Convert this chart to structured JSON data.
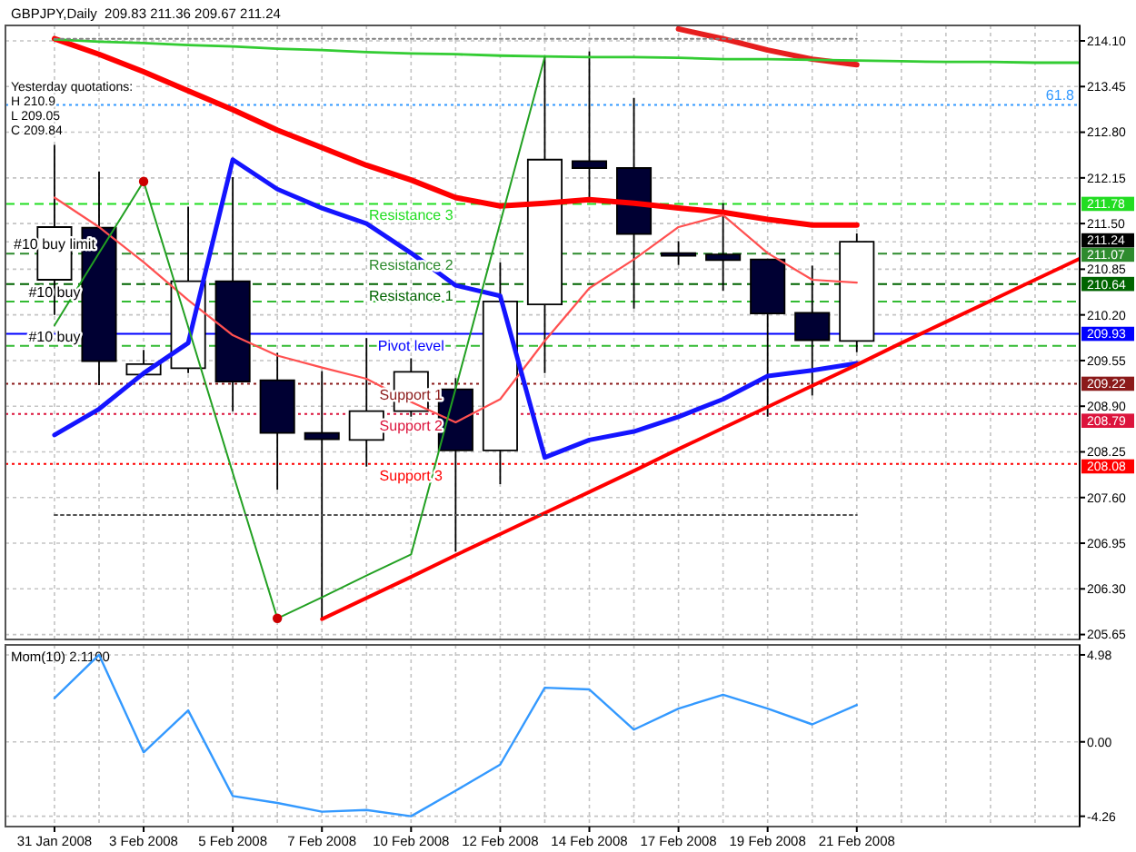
{
  "chart_data": [
    {
      "type": "candlestick",
      "title": "GBPJPY,Daily  209.83 211.36 209.67 211.24",
      "categories": [
        "31 Jan 2008",
        null,
        "3 Feb 2008",
        null,
        "5 Feb 2008",
        null,
        "7 Feb 2008",
        null,
        "10 Feb 2008",
        null,
        "12 Feb 2008",
        null,
        "14 Feb 2008",
        null,
        "17 Feb 2008",
        null,
        "19 Feb 2008",
        null,
        "21 Feb 2008",
        null,
        null,
        null,
        null,
        null
      ],
      "ohlc": [
        [
          210.7,
          212.62,
          210.2,
          211.45
        ],
        [
          211.44,
          212.24,
          209.2,
          209.54
        ],
        [
          209.35,
          209.7,
          209.33,
          209.5
        ],
        [
          209.44,
          211.74,
          209.37,
          210.68
        ],
        [
          210.68,
          212.16,
          208.83,
          209.25
        ],
        [
          209.27,
          209.66,
          207.71,
          208.52
        ],
        [
          208.52,
          209.4,
          205.87,
          208.43
        ],
        [
          208.42,
          209.87,
          208.04,
          208.83
        ],
        [
          208.83,
          209.58,
          208.75,
          209.39
        ],
        [
          209.14,
          209.3,
          206.83,
          208.27
        ],
        [
          208.27,
          210.95,
          207.79,
          210.39
        ],
        [
          210.35,
          213.87,
          209.37,
          212.41
        ],
        [
          212.39,
          213.95,
          211.87,
          212.29
        ],
        [
          212.29,
          213.29,
          210.29,
          211.35
        ],
        [
          211.08,
          211.25,
          210.91,
          211.04
        ],
        [
          211.06,
          211.79,
          210.54,
          210.98
        ],
        [
          210.99,
          211.0,
          208.75,
          210.22
        ],
        [
          210.23,
          210.9,
          209.05,
          209.84
        ],
        [
          209.83,
          211.36,
          209.67,
          211.24
        ],
        null,
        null,
        null,
        null,
        null
      ],
      "colors": [
        "#ffffff",
        "#000033",
        "#ffffff",
        "#ffffff",
        "#000033",
        "#000033",
        "#000033",
        "#ffffff",
        "#ffffff",
        "#000033",
        "#ffffff",
        "#ffffff",
        "#000033",
        "#000033",
        "#000033",
        "#000033",
        "#000033",
        "#000033",
        "#ffffff",
        null,
        null,
        null,
        null,
        null
      ],
      "series": [
        {
          "type": "line",
          "color": "#ff0000",
          "values": [
            214.13,
            213.91,
            213.66,
            213.39,
            213.12,
            212.83,
            212.58,
            212.33,
            212.12,
            211.87,
            211.75,
            211.79,
            211.84,
            211.79,
            211.72,
            211.66,
            211.56,
            211.48,
            211.48,
            null,
            null,
            null,
            null,
            null
          ]
        },
        {
          "type": "line",
          "color": "#e61e1e",
          "values": [
            null,
            null,
            null,
            null,
            null,
            null,
            null,
            null,
            null,
            null,
            null,
            null,
            null,
            null,
            214.27,
            214.13,
            213.97,
            213.84,
            213.76,
            null,
            null,
            null,
            null,
            null
          ]
        },
        {
          "type": "line",
          "color": "#ff5050",
          "values": [
            211.87,
            211.45,
            210.95,
            210.41,
            209.91,
            209.62,
            209.45,
            209.29,
            208.96,
            208.67,
            209.0,
            209.83,
            210.58,
            210.99,
            211.45,
            211.62,
            211.08,
            210.7,
            210.66,
            null,
            null,
            null,
            null,
            null
          ]
        },
        {
          "type": "line",
          "color": "#1414ff",
          "values": [
            208.49,
            208.86,
            209.37,
            209.8,
            212.41,
            211.99,
            211.72,
            211.5,
            211.08,
            210.62,
            210.47,
            208.17,
            208.42,
            208.54,
            208.75,
            209.0,
            209.33,
            209.41,
            209.51,
            null,
            null,
            null,
            null,
            null
          ]
        },
        {
          "type": "line",
          "color": "#33cc33",
          "values": [
            214.12,
            214.09,
            214.07,
            214.04,
            214.02,
            213.99,
            213.97,
            213.94,
            213.92,
            213.91,
            213.89,
            213.88,
            213.87,
            213.87,
            213.86,
            213.84,
            213.84,
            213.83,
            213.82,
            213.81,
            213.8,
            213.8,
            213.79,
            213.79
          ]
        },
        {
          "type": "line",
          "color": "#22a022",
          "values": [
            210.05,
            211.08,
            212.1,
            210.03,
            207.95,
            205.88,
            206.18,
            206.49,
            206.79,
            209.15,
            211.51,
            213.87,
            null,
            null,
            null,
            null,
            null,
            null,
            null,
            null,
            null,
            null,
            null,
            null
          ]
        },
        {
          "type": "line",
          "color": "#ff0000",
          "values": [
            null,
            null,
            null,
            null,
            null,
            null,
            205.87,
            206.17,
            206.47,
            206.78,
            207.08,
            207.38,
            207.68,
            207.98,
            208.29,
            208.59,
            208.89,
            209.19,
            209.49,
            209.8,
            210.1,
            210.4,
            210.7,
            211.0
          ]
        },
        {
          "type": "line",
          "color": "#808080",
          "line_style": "dotted",
          "values": [
            214.13,
            214.13,
            214.13,
            214.13,
            214.13,
            214.13,
            214.13,
            214.13,
            214.13,
            214.13,
            214.13,
            214.13,
            214.13,
            214.13,
            214.13,
            214.13,
            214.13,
            214.13,
            214.13,
            null,
            null,
            null,
            null,
            null
          ]
        },
        {
          "type": "line",
          "color": "#505050",
          "line_style": "dotted",
          "values": [
            207.35,
            207.35,
            207.35,
            207.35,
            207.35,
            207.35,
            207.35,
            207.35,
            207.35,
            207.35,
            207.35,
            207.35,
            207.35,
            207.35,
            207.35,
            207.35,
            207.35,
            207.35,
            207.35,
            null,
            null,
            null,
            null,
            null
          ]
        },
        {
          "type": "scatter",
          "color": "#cc0000",
          "marker": "circle",
          "values": [
            null,
            null,
            212.1,
            null,
            null,
            205.88,
            null,
            null,
            null,
            null,
            null,
            null,
            null,
            null,
            null,
            null,
            null,
            null,
            null,
            null,
            null,
            null,
            null,
            null
          ]
        }
      ],
      "ref_lines": [
        {
          "axis": "y",
          "value": 211.78,
          "label": "211.78",
          "color": "#22dd22",
          "line_style": "dashed"
        },
        {
          "axis": "y",
          "value": 211.07,
          "label": "211.07",
          "color": "#2e8b2e",
          "line_style": "dashed"
        },
        {
          "axis": "y",
          "value": 210.64,
          "label": "210.64",
          "color": "#006400",
          "line_style": "dashed"
        },
        {
          "axis": "y",
          "value": 209.93,
          "label": "209.93",
          "color": "#0000ff",
          "line_style": "solid"
        },
        {
          "axis": "y",
          "value": 209.22,
          "label": "209.22",
          "color": "#8b1a1a",
          "line_style": "dotted"
        },
        {
          "axis": "y",
          "value": 208.79,
          "label": "208.79",
          "color": "#dc143c",
          "line_style": "dotted"
        },
        {
          "axis": "y",
          "value": 208.08,
          "label": "208.08",
          "color": "#ff0000",
          "line_style": "dotted"
        },
        {
          "axis": "y",
          "value": 210.39,
          "color": "#33bb33",
          "line_style": "dashed"
        },
        {
          "axis": "y",
          "value": 209.76,
          "color": "#33bb33",
          "line_style": "dashed"
        },
        {
          "axis": "y",
          "value": 213.19,
          "color": "#3399ff",
          "line_style": "dotted"
        }
      ],
      "annotations": [
        "Yesterday quotations:",
        "H 210.9",
        "L 209.05",
        "C 209.84",
        {
          "text": "61.8",
          "y": 213.19
        },
        {
          "text": "Resistance 3",
          "x": "10 Feb 2008",
          "y": 211.78
        },
        {
          "text": "Resistance 2",
          "x": "10 Feb 2008",
          "y": 211.07
        },
        {
          "text": "Resistance 1",
          "x": "10 Feb 2008",
          "y": 210.64
        },
        {
          "text": "Pivot level",
          "x": "10 Feb 2008",
          "y": 209.93
        },
        {
          "text": "Support 1",
          "x": "10 Feb 2008",
          "y": 209.22
        },
        {
          "text": "Support 2",
          "x": "10 Feb 2008",
          "y": 208.79
        },
        {
          "text": "Support 3",
          "x": "10 Feb 2008",
          "y": 208.08
        },
        {
          "text": "#10 buy limit",
          "x": "31 Jan 2008",
          "y": 211.08
        },
        {
          "text": "#10 buy",
          "x": "31 Jan 2008",
          "y": 210.39
        },
        {
          "text": "#10 buy",
          "x": "31 Jan 2008",
          "y": 209.76
        }
      ],
      "ylim": [
        205.58,
        214.32
      ],
      "yticks": [
        {
          "value": 214.1,
          "label": "214.10"
        },
        213.45,
        {
          "value": 212.8,
          "label": "212.80"
        },
        212.15,
        {
          "value": 211.5,
          "label": "211.50"
        },
        211.24,
        210.85,
        {
          "value": 210.2,
          "label": "210.20"
        },
        209.55,
        {
          "value": 208.9,
          "label": "208.90"
        },
        208.25,
        {
          "value": 207.6,
          "label": "207.60"
        },
        206.95,
        {
          "value": 206.3,
          "label": "206.30"
        },
        205.65
      ],
      "grid": true,
      "tick_labels": "y"
    },
    {
      "type": "line",
      "title": "Mom(10) 2.1100",
      "categories": [
        "31 Jan 2008",
        null,
        "3 Feb 2008",
        null,
        "5 Feb 2008",
        null,
        "7 Feb 2008",
        null,
        "10 Feb 2008",
        null,
        "12 Feb 2008",
        null,
        "14 Feb 2008",
        null,
        "17 Feb 2008",
        null,
        "19 Feb 2008",
        null,
        "21 Feb 2008",
        null,
        null,
        null,
        null,
        null
      ],
      "series": [
        {
          "color": "#3399ff",
          "values": [
            2.5,
            4.98,
            -0.6,
            1.8,
            -3.1,
            -3.5,
            -4.0,
            -3.9,
            -4.26,
            -2.8,
            -1.3,
            3.1,
            3.0,
            0.7,
            1.9,
            2.7,
            1.9,
            1.0,
            2.11,
            null,
            null,
            null,
            null,
            null
          ]
        }
      ],
      "ylim": [
        -4.85,
        5.55
      ],
      "yticks": [
        4.98,
        {
          "value": 0,
          "label": "0.00"
        },
        -4.26
      ],
      "grid": true
    }
  ]
}
